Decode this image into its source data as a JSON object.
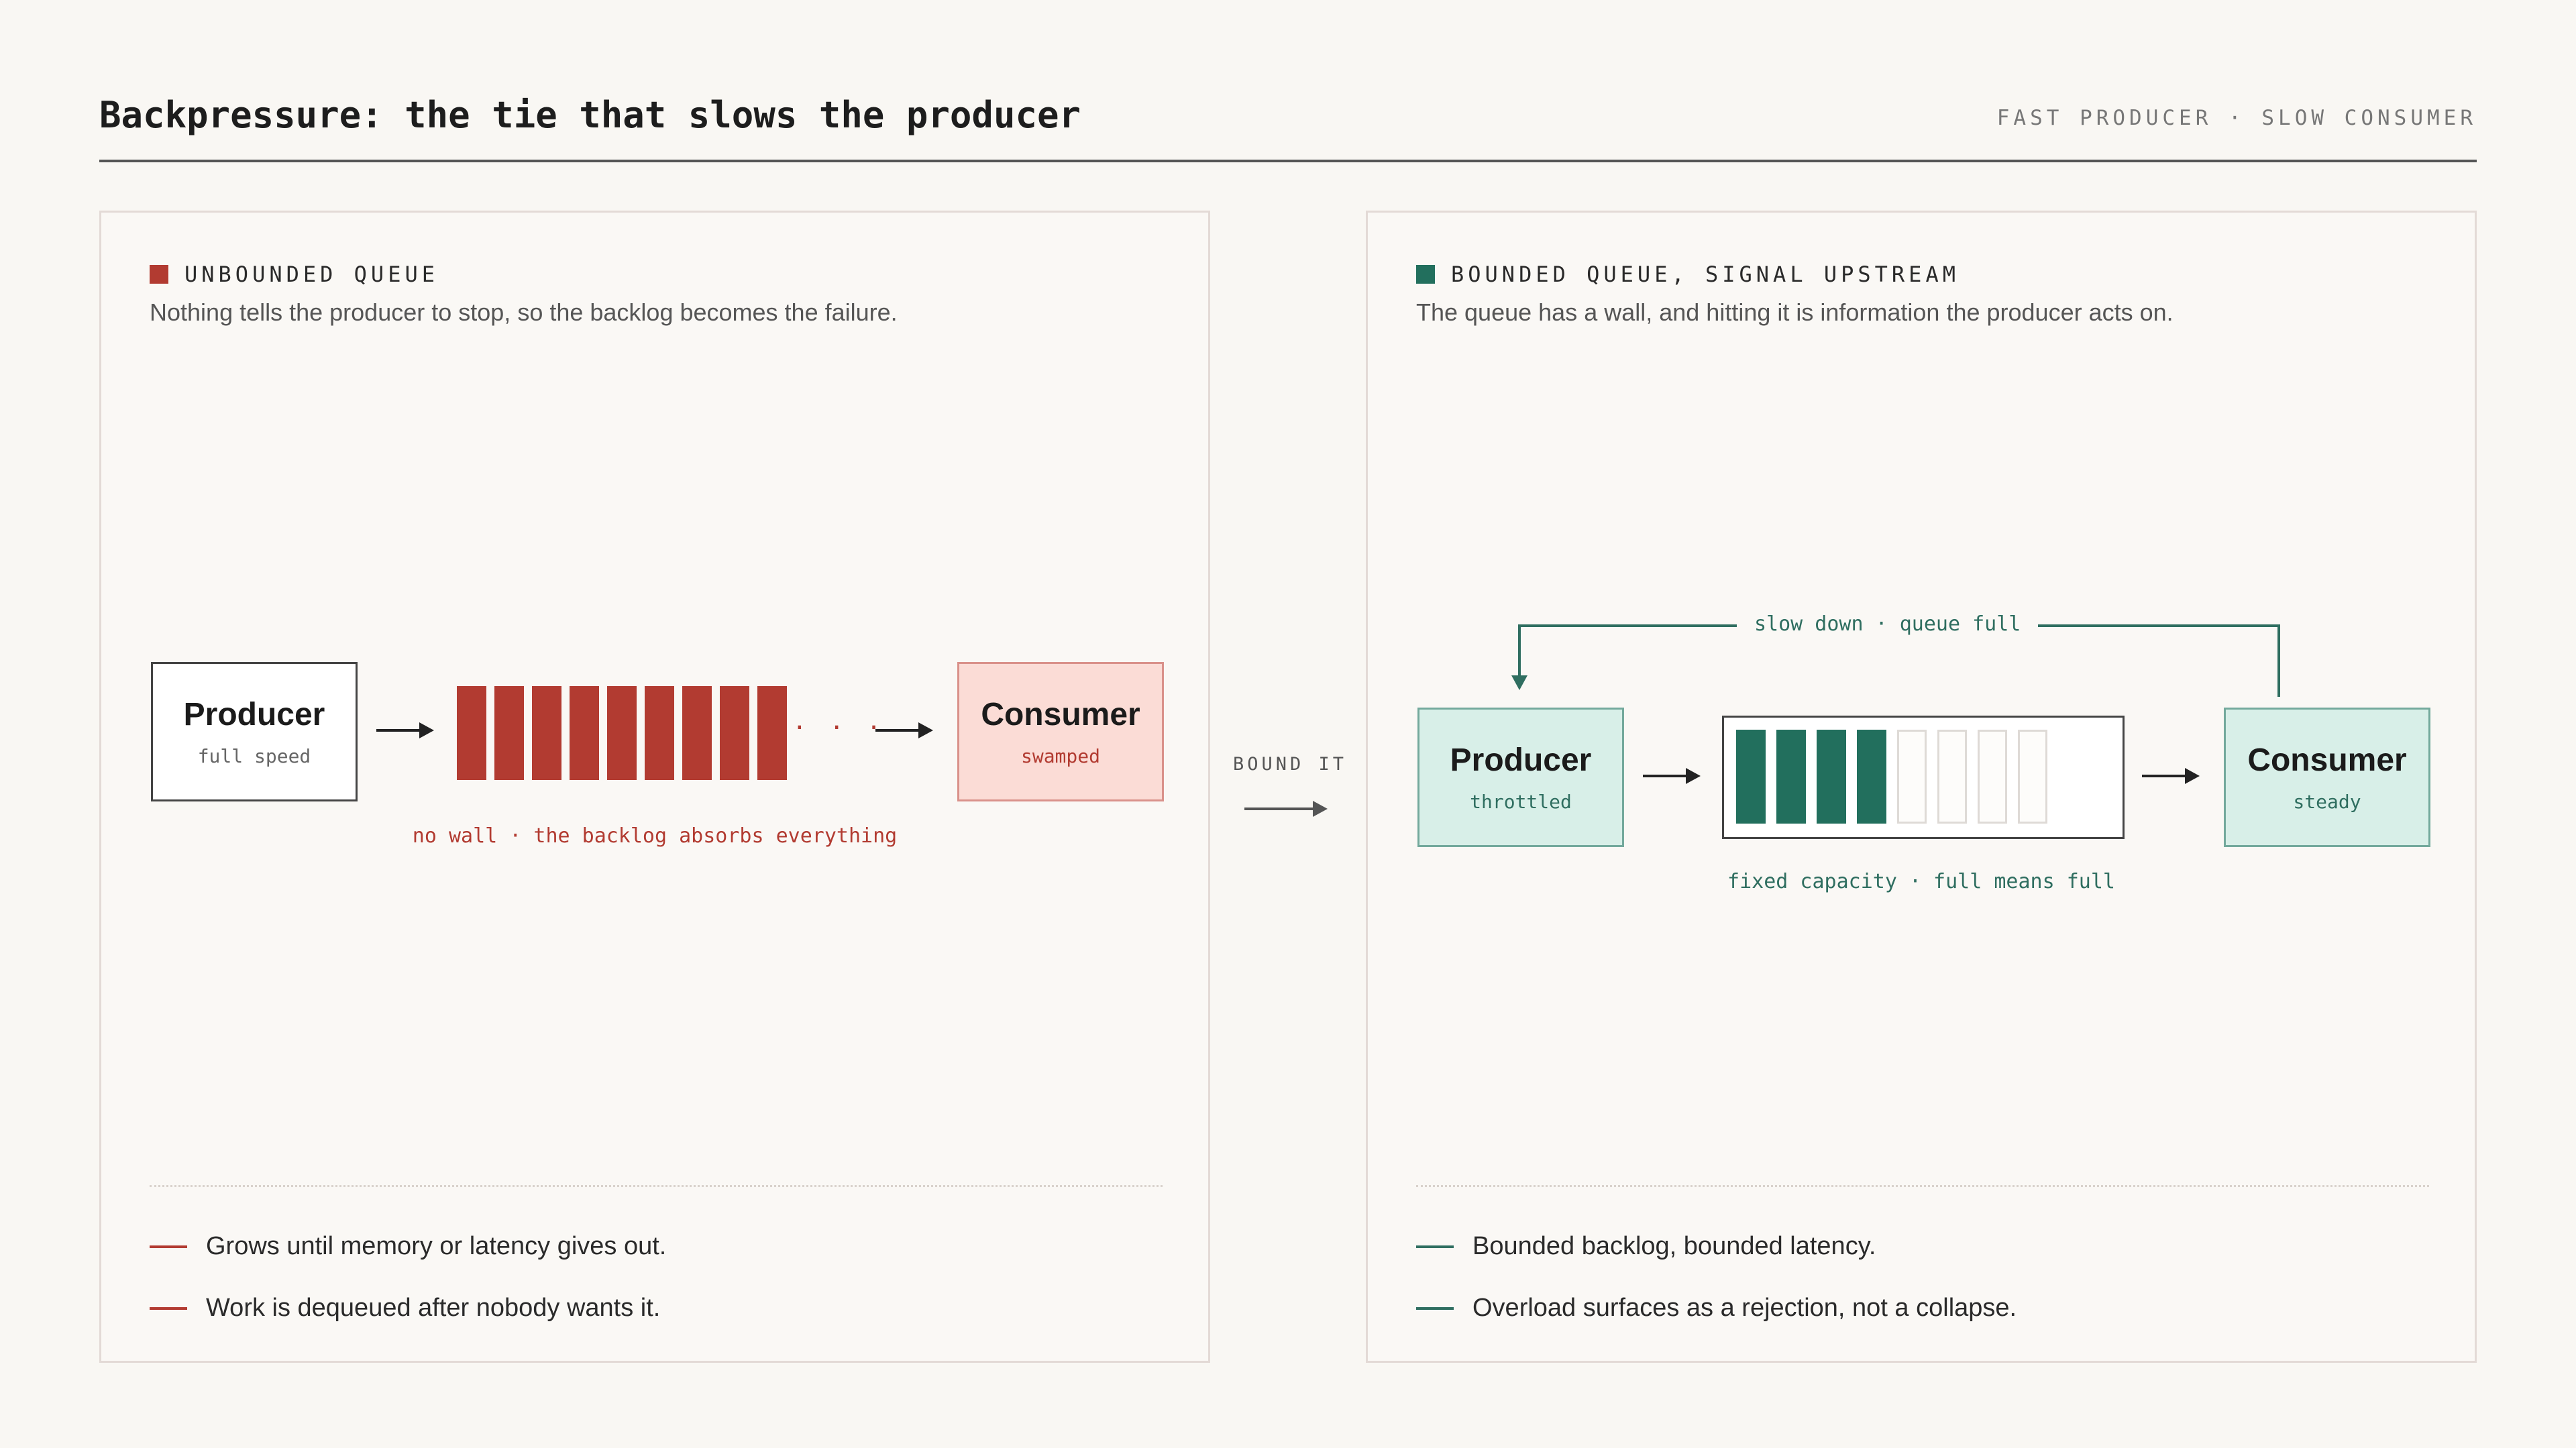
{
  "header": {
    "title": "Backpressure: the tie that slows the producer",
    "tagline": "FAST PRODUCER · SLOW CONSUMER"
  },
  "connector": {
    "label": "BOUND IT"
  },
  "left": {
    "label": "UNBOUNDED QUEUE",
    "description": "Nothing tells the producer to stop, so the backlog becomes the failure.",
    "producer": {
      "title": "Producer",
      "sub": "full speed"
    },
    "consumer": {
      "title": "Consumer",
      "sub": "swamped"
    },
    "queue_items": 9,
    "overflow": "· · ·",
    "caption": "no wall · the backlog absorbs everything",
    "bullets": [
      "Grows until memory or latency gives out.",
      "Work is dequeued after nobody wants it."
    ]
  },
  "right": {
    "label": "BOUNDED QUEUE, SIGNAL UPSTREAM",
    "description": "The queue has a wall, and hitting it is information the producer acts on.",
    "producer": {
      "title": "Producer",
      "sub": "throttled"
    },
    "consumer": {
      "title": "Consumer",
      "sub": "steady"
    },
    "queue_filled": 4,
    "queue_capacity": 8,
    "feedback": "slow down · queue full",
    "caption": "fixed capacity · full means full",
    "bullets": [
      "Bounded backlog, bounded latency.",
      "Overload surfaces as a rejection, not a collapse."
    ]
  },
  "colors": {
    "red": "#b23b31",
    "green": "#226f5d",
    "pink": "#fbdcd6",
    "mint": "#d8efe8"
  }
}
